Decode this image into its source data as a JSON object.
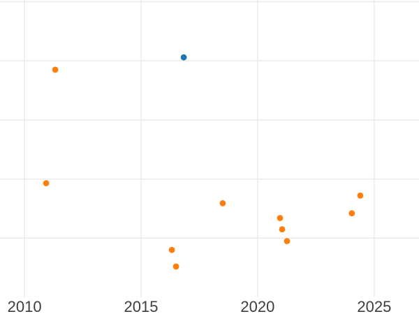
{
  "chart_data": {
    "type": "scatter",
    "title": "",
    "xlabel": "",
    "ylabel": "",
    "x_ticks": [
      "2010",
      "2015",
      "2020",
      "2025"
    ],
    "x_tick_years": [
      2010,
      2015,
      2020,
      2025
    ],
    "y_gridline_units": [
      1,
      2,
      3,
      4,
      5
    ],
    "y_tick_labels_visible": false,
    "xlim": [
      2008.95,
      2026.92
    ],
    "ylim": [
      0,
      5.03
    ],
    "grid": true,
    "legend": "none",
    "series": [
      {
        "name": "orange-series",
        "color": "#ff7f0e",
        "marker": "circle",
        "points": [
          {
            "x": 2010.93,
            "y": 1.93
          },
          {
            "x": 2011.32,
            "y": 3.85
          },
          {
            "x": 2016.32,
            "y": 0.8
          },
          {
            "x": 2016.5,
            "y": 0.52
          },
          {
            "x": 2018.5,
            "y": 1.59
          },
          {
            "x": 2020.96,
            "y": 1.34
          },
          {
            "x": 2021.05,
            "y": 1.15
          },
          {
            "x": 2021.26,
            "y": 0.95
          },
          {
            "x": 2024.04,
            "y": 1.42
          },
          {
            "x": 2024.4,
            "y": 1.72
          }
        ]
      },
      {
        "name": "blue-series",
        "color": "#1f77b4",
        "marker": "circle",
        "points": [
          {
            "x": 2016.83,
            "y": 4.06
          }
        ]
      }
    ]
  },
  "style": {
    "background": "#ffffff",
    "grid_color": "#e9e9e9",
    "tick_label_color": "#3d3d3d",
    "marker_radius": 4.4
  }
}
